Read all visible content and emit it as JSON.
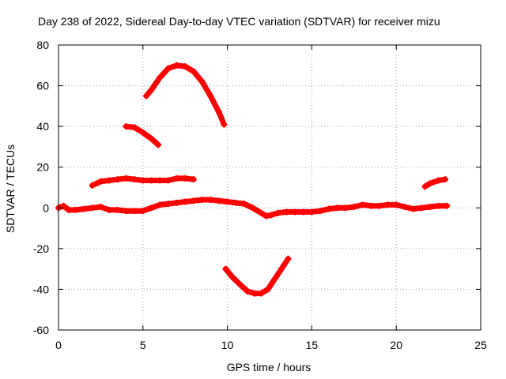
{
  "chart_data": {
    "type": "scatter",
    "title": "Day 238 of 2022, Sidereal Day-to-day VTEC variation (SDTVAR) for receiver mizu",
    "xlabel": "GPS time / hours",
    "ylabel": "SDTVAR / TECUs",
    "xlim": [
      0,
      25
    ],
    "ylim": [
      -60,
      80
    ],
    "xticks": [
      0,
      5,
      10,
      15,
      20,
      25
    ],
    "yticks": [
      80,
      60,
      40,
      20,
      0,
      -20,
      -40,
      -60
    ],
    "grid": true,
    "marker_color": "#ff0000",
    "series": [
      {
        "name": "baseline",
        "x": [
          0,
          0.3,
          0.6,
          1,
          1.5,
          2,
          2.5,
          3,
          3.5,
          4,
          4.5,
          5,
          5.5,
          6,
          6.5,
          7,
          7.5,
          8,
          8.5,
          9,
          9.5,
          10,
          10.5,
          11,
          11.5,
          12,
          12.3,
          12.6,
          13,
          13.5,
          14,
          14.5,
          15,
          15.5,
          16,
          16.5,
          17,
          17.5,
          18,
          18.5,
          19,
          19.5,
          20,
          20.5,
          21,
          21.5,
          22,
          22.5,
          23
        ],
        "y": [
          0,
          1,
          -1,
          -1,
          -0.5,
          0,
          0.5,
          -1,
          -1,
          -1.5,
          -1.5,
          -1.5,
          0,
          1.5,
          2,
          2.5,
          3,
          3.5,
          4,
          4,
          3.5,
          3,
          2.5,
          2,
          0,
          -2.5,
          -4,
          -3.5,
          -2.5,
          -2,
          -2,
          -2,
          -2,
          -1.5,
          -0.5,
          0,
          0,
          0.5,
          1.5,
          1,
          1,
          1.5,
          1.5,
          0.5,
          -0.5,
          0,
          0.5,
          1,
          1
        ]
      },
      {
        "name": "arc-low",
        "x": [
          2.0,
          2.5,
          3.0,
          3.5,
          4.0,
          4.5,
          5.0,
          5.5,
          6.0,
          6.5,
          7.0,
          7.5,
          8.0
        ],
        "y": [
          11,
          13,
          13.5,
          14,
          14.5,
          14,
          13.5,
          13.5,
          13.5,
          13.5,
          14.5,
          14.5,
          14
        ]
      },
      {
        "name": "arc-short",
        "x": [
          4.0,
          4.5,
          5.0,
          5.5,
          5.9
        ],
        "y": [
          40,
          39.5,
          37,
          34,
          31
        ]
      },
      {
        "name": "arc-peak",
        "x": [
          5.2,
          5.5,
          6.0,
          6.5,
          7.0,
          7.5,
          8.0,
          8.5,
          9.0,
          9.5,
          9.8
        ],
        "y": [
          55,
          58,
          64,
          68.5,
          70,
          69.5,
          67,
          62,
          55,
          47,
          41
        ]
      },
      {
        "name": "arc-trough",
        "x": [
          9.9,
          10.3,
          10.8,
          11.2,
          11.6,
          12.0,
          12.4,
          12.8,
          13.2,
          13.6
        ],
        "y": [
          -30,
          -34,
          -38,
          -41,
          -42,
          -42,
          -40,
          -35,
          -30,
          -25
        ]
      },
      {
        "name": "arc-late",
        "x": [
          21.7,
          22.0,
          22.5,
          22.9
        ],
        "y": [
          10.5,
          12,
          13.5,
          14
        ]
      }
    ]
  }
}
